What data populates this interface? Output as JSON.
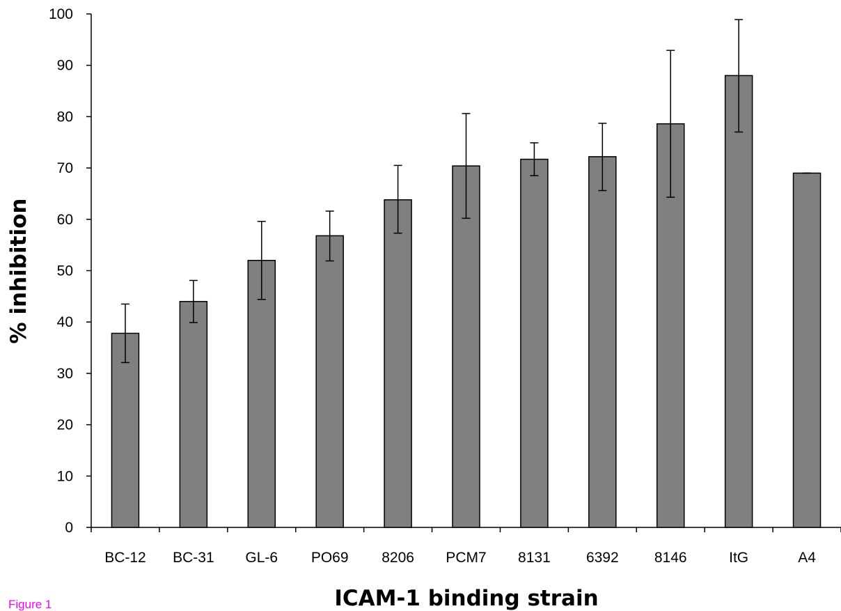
{
  "figure_label": "Figure 1",
  "colors": {
    "bar_fill": "#808080",
    "bar_stroke": "#000000",
    "axis": "#000000",
    "error_bar": "#000000",
    "figure_label": "#ff00ff"
  },
  "chart_data": {
    "type": "bar",
    "title": "",
    "xlabel": "ICAM-1 binding strain",
    "ylabel": "% inhibition",
    "ylim": [
      0,
      100
    ],
    "yticks": [
      0,
      10,
      20,
      30,
      40,
      50,
      60,
      70,
      80,
      90,
      100
    ],
    "grid": false,
    "legend": "none",
    "categories": [
      "BC-12",
      "BC-31",
      "GL-6",
      "PO69",
      "8206",
      "PCM7",
      "8131",
      "6392",
      "8146",
      "ItG",
      "A4"
    ],
    "values": [
      37.8,
      44.0,
      52.0,
      56.8,
      63.8,
      70.4,
      71.7,
      72.2,
      78.6,
      88.0,
      69.0
    ],
    "error_upper": [
      43.5,
      48.1,
      59.6,
      61.6,
      70.5,
      80.6,
      74.9,
      78.7,
      92.9,
      98.9,
      69.0
    ],
    "error_lower": [
      32.1,
      39.9,
      44.4,
      51.9,
      57.3,
      60.2,
      68.5,
      65.6,
      64.3,
      77.0,
      69.0
    ]
  }
}
